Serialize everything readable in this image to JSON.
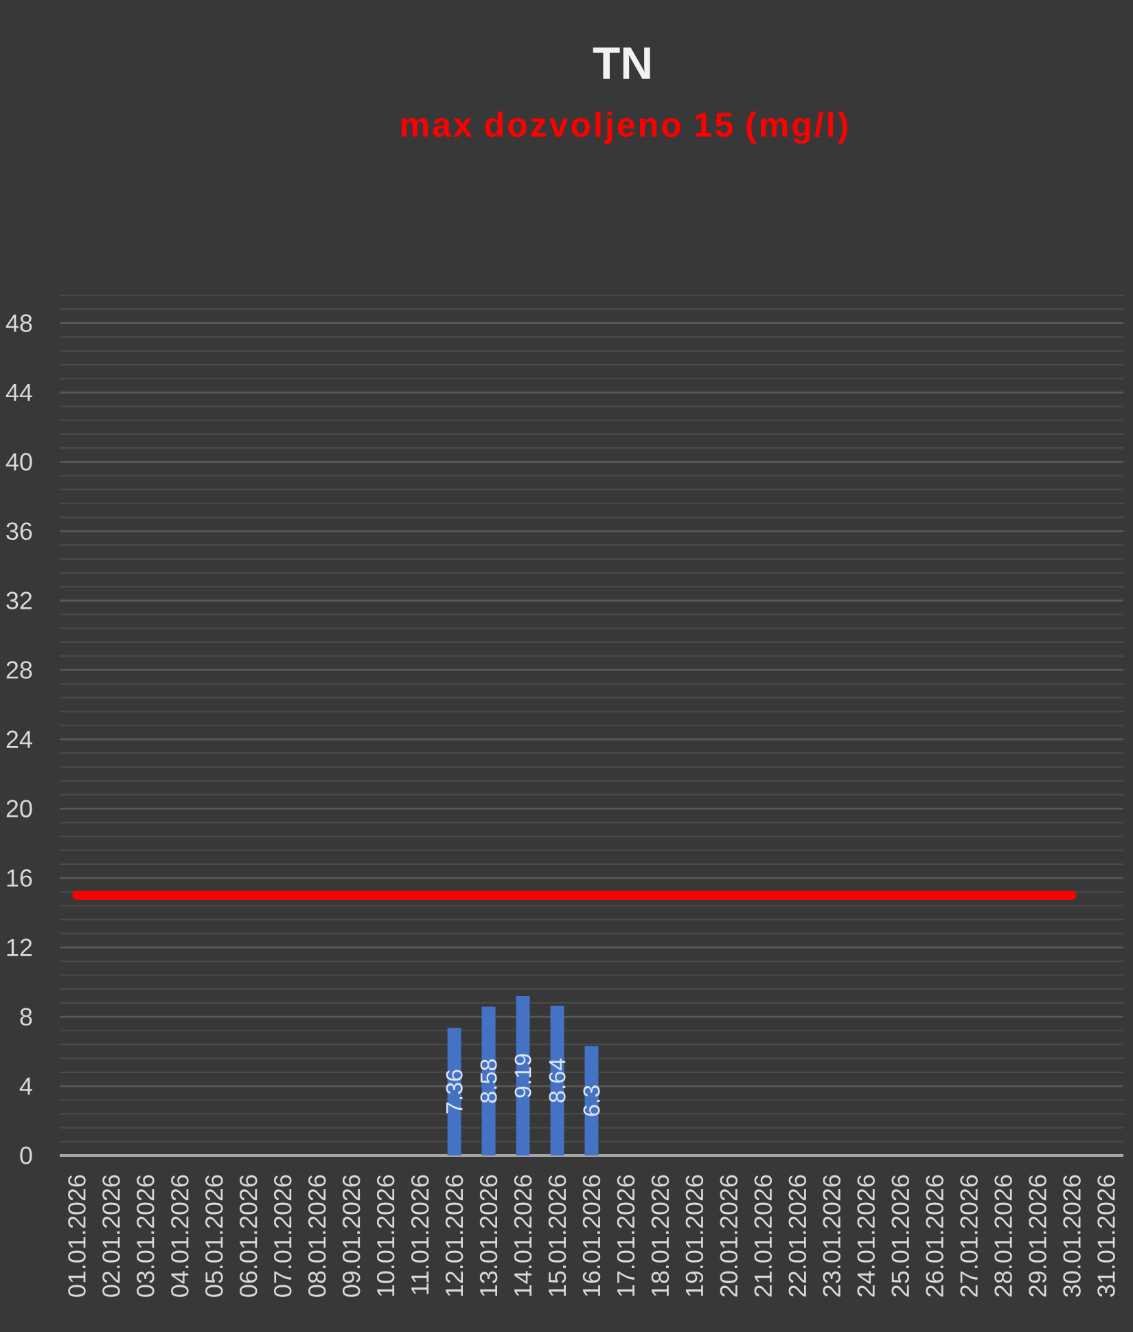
{
  "chart_data": {
    "type": "bar",
    "title": "TN",
    "subtitle": "max dozvoljeno 15 (mg/l)",
    "categories": [
      "01.01.2026",
      "02.01.2026",
      "03.01.2026",
      "04.01.2026",
      "05.01.2026",
      "06.01.2026",
      "07.01.2026",
      "08.01.2026",
      "09.01.2026",
      "10.01.2026",
      "11.01.2026",
      "12.01.2026",
      "13.01.2026",
      "14.01.2026",
      "15.01.2026",
      "16.01.2026",
      "17.01.2026",
      "18.01.2026",
      "19.01.2026",
      "20.01.2026",
      "21.01.2026",
      "22.01.2026",
      "23.01.2026",
      "24.01.2026",
      "25.01.2026",
      "26.01.2026",
      "27.01.2026",
      "28.01.2026",
      "29.01.2026",
      "30.01.2026",
      "31.01.2026"
    ],
    "series": [
      {
        "color": "#4472c4",
        "values": [
          null,
          null,
          null,
          null,
          null,
          null,
          null,
          null,
          null,
          null,
          null,
          7.36,
          8.58,
          9.19,
          8.64,
          6.3,
          null,
          null,
          null,
          null,
          null,
          null,
          null,
          null,
          null,
          null,
          null,
          null,
          null,
          null,
          null
        ],
        "value_labels": [
          null,
          null,
          null,
          null,
          null,
          null,
          null,
          null,
          null,
          null,
          null,
          "7.36",
          "8.58",
          "9.19",
          "8.64",
          "6.3",
          null,
          null,
          null,
          null,
          null,
          null,
          null,
          null,
          null,
          null,
          null,
          null,
          null,
          null,
          null
        ]
      },
      {
        "type": "line",
        "color": "#ff0000",
        "values": [
          15,
          15,
          15,
          15,
          15,
          15,
          15,
          15,
          15,
          15,
          15,
          15,
          15,
          15,
          15,
          15,
          15,
          15,
          15,
          15,
          15,
          15,
          15,
          15,
          15,
          15,
          15,
          15,
          15,
          15,
          null
        ]
      }
    ],
    "ylim": [
      0,
      49.6
    ],
    "yticks": [
      0,
      {
        "value": 0.8,
        "label": null
      },
      {
        "value": 1.6,
        "label": null
      },
      {
        "value": 2.4,
        "label": null
      },
      {
        "value": 3.2,
        "label": null
      },
      4,
      {
        "value": 4.8,
        "label": null
      },
      {
        "value": 5.6,
        "label": null
      },
      {
        "value": 6.4,
        "label": null
      },
      {
        "value": 7.2,
        "label": null
      },
      8,
      {
        "value": 8.8,
        "label": null
      },
      {
        "value": 9.6,
        "label": null
      },
      {
        "value": 10.4,
        "label": null
      },
      {
        "value": 11.2,
        "label": null
      },
      12,
      {
        "value": 12.8,
        "label": null
      },
      {
        "value": 13.6,
        "label": null
      },
      {
        "value": 14.4,
        "label": null
      },
      {
        "value": 15.2,
        "label": null
      },
      16,
      {
        "value": 16.8,
        "label": null
      },
      {
        "value": 17.6,
        "label": null
      },
      {
        "value": 18.4,
        "label": null
      },
      {
        "value": 19.2,
        "label": null
      },
      20,
      {
        "value": 20.8,
        "label": null
      },
      {
        "value": 21.6,
        "label": null
      },
      {
        "value": 22.4,
        "label": null
      },
      {
        "value": 23.2,
        "label": null
      },
      24,
      {
        "value": 24.8,
        "label": null
      },
      {
        "value": 25.6,
        "label": null
      },
      {
        "value": 26.4,
        "label": null
      },
      {
        "value": 27.2,
        "label": null
      },
      28,
      {
        "value": 28.8,
        "label": null
      },
      {
        "value": 29.6,
        "label": null
      },
      {
        "value": 30.4,
        "label": null
      },
      {
        "value": 31.2,
        "label": null
      },
      32,
      {
        "value": 32.8,
        "label": null
      },
      {
        "value": 33.6,
        "label": null
      },
      {
        "value": 34.4,
        "label": null
      },
      {
        "value": 35.2,
        "label": null
      },
      36,
      {
        "value": 36.8,
        "label": null
      },
      {
        "value": 37.6,
        "label": null
      },
      {
        "value": 38.4,
        "label": null
      },
      {
        "value": 39.2,
        "label": null
      },
      40,
      {
        "value": 40.8,
        "label": null
      },
      {
        "value": 41.6,
        "label": null
      },
      {
        "value": 42.4,
        "label": null
      },
      {
        "value": 43.2,
        "label": null
      },
      44,
      {
        "value": 44.8,
        "label": null
      },
      {
        "value": 45.6,
        "label": null
      },
      {
        "value": 46.4,
        "label": null
      },
      {
        "value": 47.2,
        "label": null
      },
      48,
      {
        "value": 48.8,
        "label": null
      },
      {
        "value": 49.6,
        "label": null
      }
    ],
    "grid": "y"
  }
}
